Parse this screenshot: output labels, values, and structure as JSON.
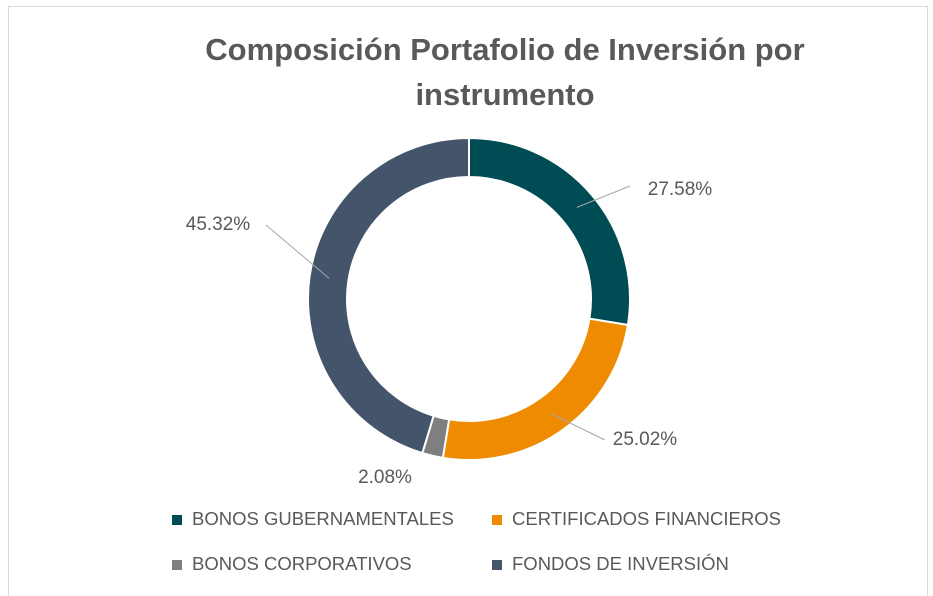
{
  "chart_data": {
    "type": "donut",
    "title": "Composición Portafolio de Inversión por instrumento",
    "categories": [
      "BONOS GUBERNAMENTALES",
      "CERTIFICADOS FINANCIEROS",
      "BONOS CORPORATIVOS",
      "FONDOS DE INVERSIÓN"
    ],
    "values": [
      27.58,
      25.02,
      2.08,
      45.32
    ],
    "value_labels": [
      "27.58%",
      "25.02%",
      "2.08%",
      "45.32%"
    ],
    "colors": [
      "#004c55",
      "#ee8b00",
      "#7f7f7f",
      "#44546a"
    ],
    "legend": "bottom"
  }
}
